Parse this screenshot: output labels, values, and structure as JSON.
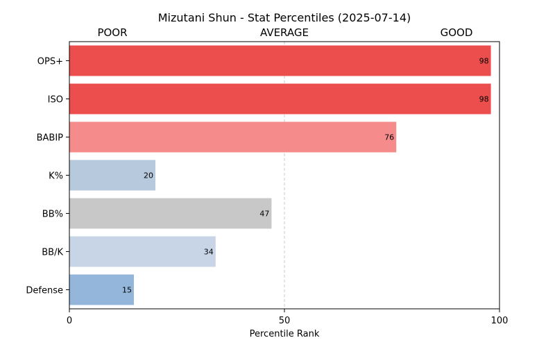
{
  "chart_data": {
    "type": "bar",
    "orientation": "horizontal",
    "title": "Mizutani Shun - Stat Percentiles (2025-07-14)",
    "xlabel": "Percentile Rank",
    "ylabel": "",
    "xlim": [
      0,
      100
    ],
    "xticks": [
      0,
      50,
      100
    ],
    "reference_line": 50,
    "band_labels": [
      {
        "text": "POOR",
        "x": 10
      },
      {
        "text": "AVERAGE",
        "x": 50
      },
      {
        "text": "GOOD",
        "x": 90
      }
    ],
    "categories": [
      "OPS+",
      "ISO",
      "BABIP",
      "K%",
      "BB%",
      "BB/K",
      "Defense"
    ],
    "values": [
      98,
      98,
      76,
      20,
      47,
      34,
      15
    ],
    "colors": [
      "#ec4d4d",
      "#ec4d4d",
      "#f58b8b",
      "#b7c9dc",
      "#c8c8c8",
      "#c7d5e6",
      "#94b6db"
    ],
    "value_labels": [
      "98",
      "98",
      "76",
      "20",
      "47",
      "34",
      "15"
    ]
  }
}
